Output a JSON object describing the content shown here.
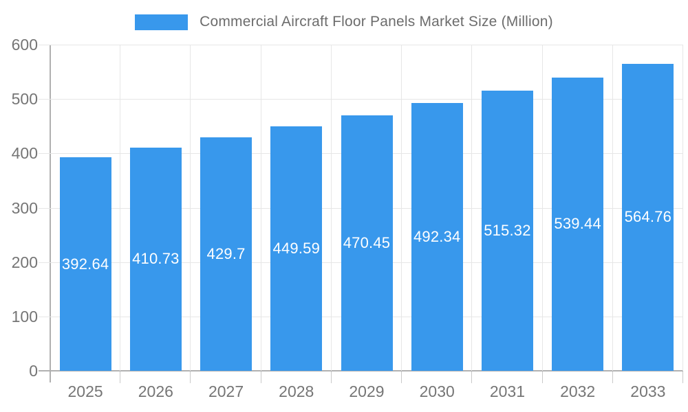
{
  "chart_data": {
    "type": "bar",
    "title": "Commercial Aircraft Floor Panels Market Size (Million)",
    "series_name": "Commercial Aircraft Floor Panels Market Size (Million)",
    "categories": [
      "2025",
      "2026",
      "2027",
      "2028",
      "2029",
      "2030",
      "2031",
      "2032",
      "2033"
    ],
    "values": [
      392.64,
      410.73,
      429.7,
      449.59,
      470.45,
      492.34,
      515.32,
      539.44,
      564.76
    ],
    "data_labels": [
      "392.64",
      "410.73",
      "429.7",
      "449.59",
      "470.45",
      "492.34",
      "515.32",
      "539.44",
      "564.76"
    ],
    "xlabel": "",
    "ylabel": "",
    "ylim": [
      0,
      600
    ],
    "yticks": [
      0,
      100,
      200,
      300,
      400,
      500,
      600
    ],
    "grid": true,
    "legend_position": "top",
    "bar_color": "#3898EC",
    "label_color": "#ffffff",
    "grid_color": "#e6e6e6",
    "axis_color": "#b0b0b0",
    "tick_text_color": "#757575",
    "title_color": "#6c6c6c"
  }
}
